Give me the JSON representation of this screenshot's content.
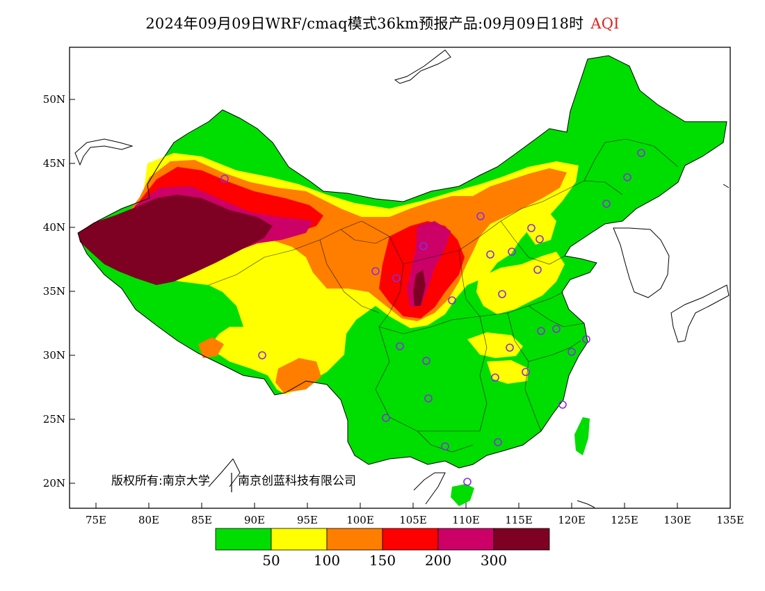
{
  "title": {
    "text": "2024年09月09日WRF/cmaq模式36km预报产品:09月09日18时",
    "variable": "AQI",
    "variable_color": "#e0201e"
  },
  "copyright": {
    "prefix": "版权所有:南京大学",
    "suffix": "南京创蓝科技有限公司"
  },
  "axes": {
    "x_ticks": [
      "75E",
      "80E",
      "85E",
      "90E",
      "95E",
      "100E",
      "105E",
      "110E",
      "115E",
      "120E",
      "125E",
      "130E",
      "135E"
    ],
    "y_ticks": [
      "50N",
      "45N",
      "40N",
      "35N",
      "30N",
      "25N",
      "20N"
    ],
    "lon_range": [
      73,
      135
    ],
    "lat_range": [
      18,
      54
    ]
  },
  "legend": {
    "colors": [
      "#00dd00",
      "#ffff00",
      "#ff7e00",
      "#ff0000",
      "#cc0066",
      "#7e0023"
    ],
    "labels": [
      "50",
      "100",
      "150",
      "200",
      "300"
    ]
  },
  "map": {
    "background_color": "#ffffff",
    "land_outside_color": "#ffffff",
    "boundary_color": "#000000",
    "station_marker_color": "#8a2be2"
  }
}
